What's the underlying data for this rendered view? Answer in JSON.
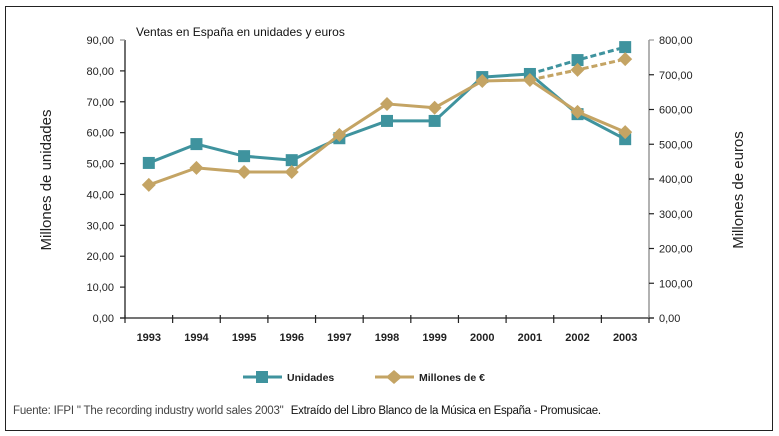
{
  "chart_data": {
    "type": "line",
    "title": "Ventas en España en unidades y euros",
    "xlabel": "",
    "ylabel": "Millones de unidades",
    "y2label": "Millones de euros",
    "categories": [
      "1993",
      "1994",
      "1995",
      "1996",
      "1997",
      "1998",
      "1999",
      "2000",
      "2001",
      "2002",
      "2003"
    ],
    "ylim": [
      0,
      90
    ],
    "y2lim": [
      0,
      800
    ],
    "yticks": [
      "0,00",
      "10,00",
      "20,00",
      "30,00",
      "40,00",
      "50,00",
      "60,00",
      "70,00",
      "80,00",
      "90,00"
    ],
    "y2ticks": [
      "0,00",
      "100,00",
      "200,00",
      "300,00",
      "400,00",
      "500,00",
      "600,00",
      "700,00",
      "800,00"
    ],
    "grid": false,
    "legend_position": "bottom",
    "series": [
      {
        "name": "Unidades",
        "axis": "left",
        "color": "#3f939e",
        "marker": "square",
        "values": [
          50.2,
          56.3,
          52.4,
          51.1,
          58.2,
          63.8,
          63.8,
          78.0,
          79.0,
          66.0,
          57.9
        ]
      },
      {
        "name": "Millones de €",
        "axis": "right",
        "color": "#c4a464",
        "marker": "diamond",
        "values": [
          383,
          432,
          420,
          420,
          527,
          616,
          605,
          682,
          685,
          593,
          535
        ]
      },
      {
        "name": "Unidades (proyección)",
        "axis": "left",
        "color": "#3f939e",
        "marker": "square",
        "dashed": true,
        "in_legend": false,
        "x": [
          "2001",
          "2002",
          "2003"
        ],
        "values": [
          79.0,
          83.5,
          87.7
        ]
      },
      {
        "name": "Millones de € (proyección)",
        "axis": "right",
        "color": "#c4a464",
        "marker": "diamond",
        "dashed": true,
        "in_legend": false,
        "x": [
          "2001",
          "2002",
          "2003"
        ],
        "values": [
          685,
          714,
          745
        ]
      }
    ]
  },
  "footer": {
    "source": "Fuente: IFPI \" The recording industry world sales 2003\"",
    "extract": "Extraído del Libro Blanco de la Música en España - Promusicae."
  }
}
